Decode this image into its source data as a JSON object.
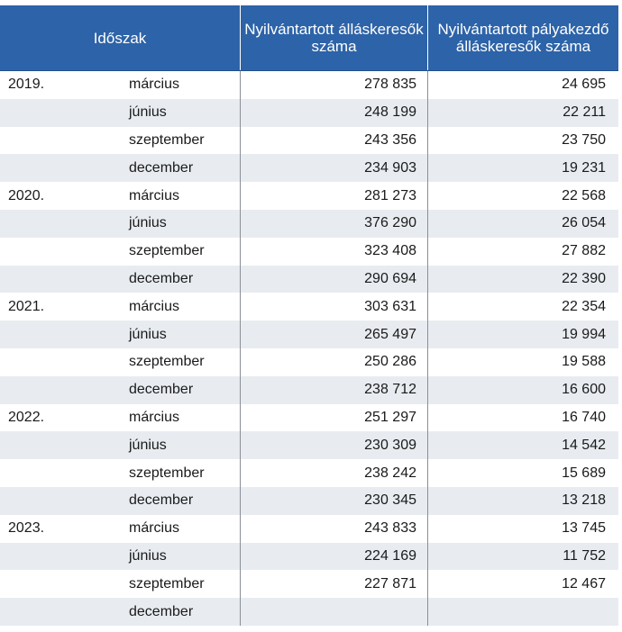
{
  "header": {
    "period": "Időszak",
    "registered_jobseekers": "Nyilvántartott álláskeresők száma",
    "registered_entrant_jobseekers": "Nyilvántartott pályakezdő álláskeresők száma"
  },
  "rows": [
    {
      "year": "2019.",
      "month": "március",
      "jobseekers": "278 835",
      "entrants": "24 695"
    },
    {
      "year": "",
      "month": "június",
      "jobseekers": "248 199",
      "entrants": "22 211"
    },
    {
      "year": "",
      "month": "szeptember",
      "jobseekers": "243 356",
      "entrants": "23 750"
    },
    {
      "year": "",
      "month": "december",
      "jobseekers": "234 903",
      "entrants": "19 231"
    },
    {
      "year": "2020.",
      "month": "március",
      "jobseekers": "281 273",
      "entrants": "22 568"
    },
    {
      "year": "",
      "month": "június",
      "jobseekers": "376 290",
      "entrants": "26 054"
    },
    {
      "year": "",
      "month": "szeptember",
      "jobseekers": "323 408",
      "entrants": "27 882"
    },
    {
      "year": "",
      "month": "december",
      "jobseekers": "290 694",
      "entrants": "22 390"
    },
    {
      "year": "2021.",
      "month": "március",
      "jobseekers": "303 631",
      "entrants": "22 354"
    },
    {
      "year": "",
      "month": "június",
      "jobseekers": "265 497",
      "entrants": "19 994"
    },
    {
      "year": "",
      "month": "szeptember",
      "jobseekers": "250 286",
      "entrants": "19 588"
    },
    {
      "year": "",
      "month": "december",
      "jobseekers": "238 712",
      "entrants": "16 600"
    },
    {
      "year": "2022.",
      "month": "március",
      "jobseekers": "251 297",
      "entrants": "16 740"
    },
    {
      "year": "",
      "month": "június",
      "jobseekers": "230 309",
      "entrants": "14 542"
    },
    {
      "year": "",
      "month": "szeptember",
      "jobseekers": "238 242",
      "entrants": "15 689"
    },
    {
      "year": "",
      "month": "december",
      "jobseekers": "230 345",
      "entrants": "13 218"
    },
    {
      "year": "2023.",
      "month": "március",
      "jobseekers": "243 833",
      "entrants": "13 745"
    },
    {
      "year": "",
      "month": "június",
      "jobseekers": "224 169",
      "entrants": "11 752"
    },
    {
      "year": "",
      "month": "szeptember",
      "jobseekers": "227 871",
      "entrants": "12 467"
    },
    {
      "year": "",
      "month": "december",
      "jobseekers": "",
      "entrants": ""
    }
  ],
  "colors": {
    "header_bg": "#2d63a8",
    "header_text": "#ffffff",
    "row_shade": "#e8ecf1"
  }
}
